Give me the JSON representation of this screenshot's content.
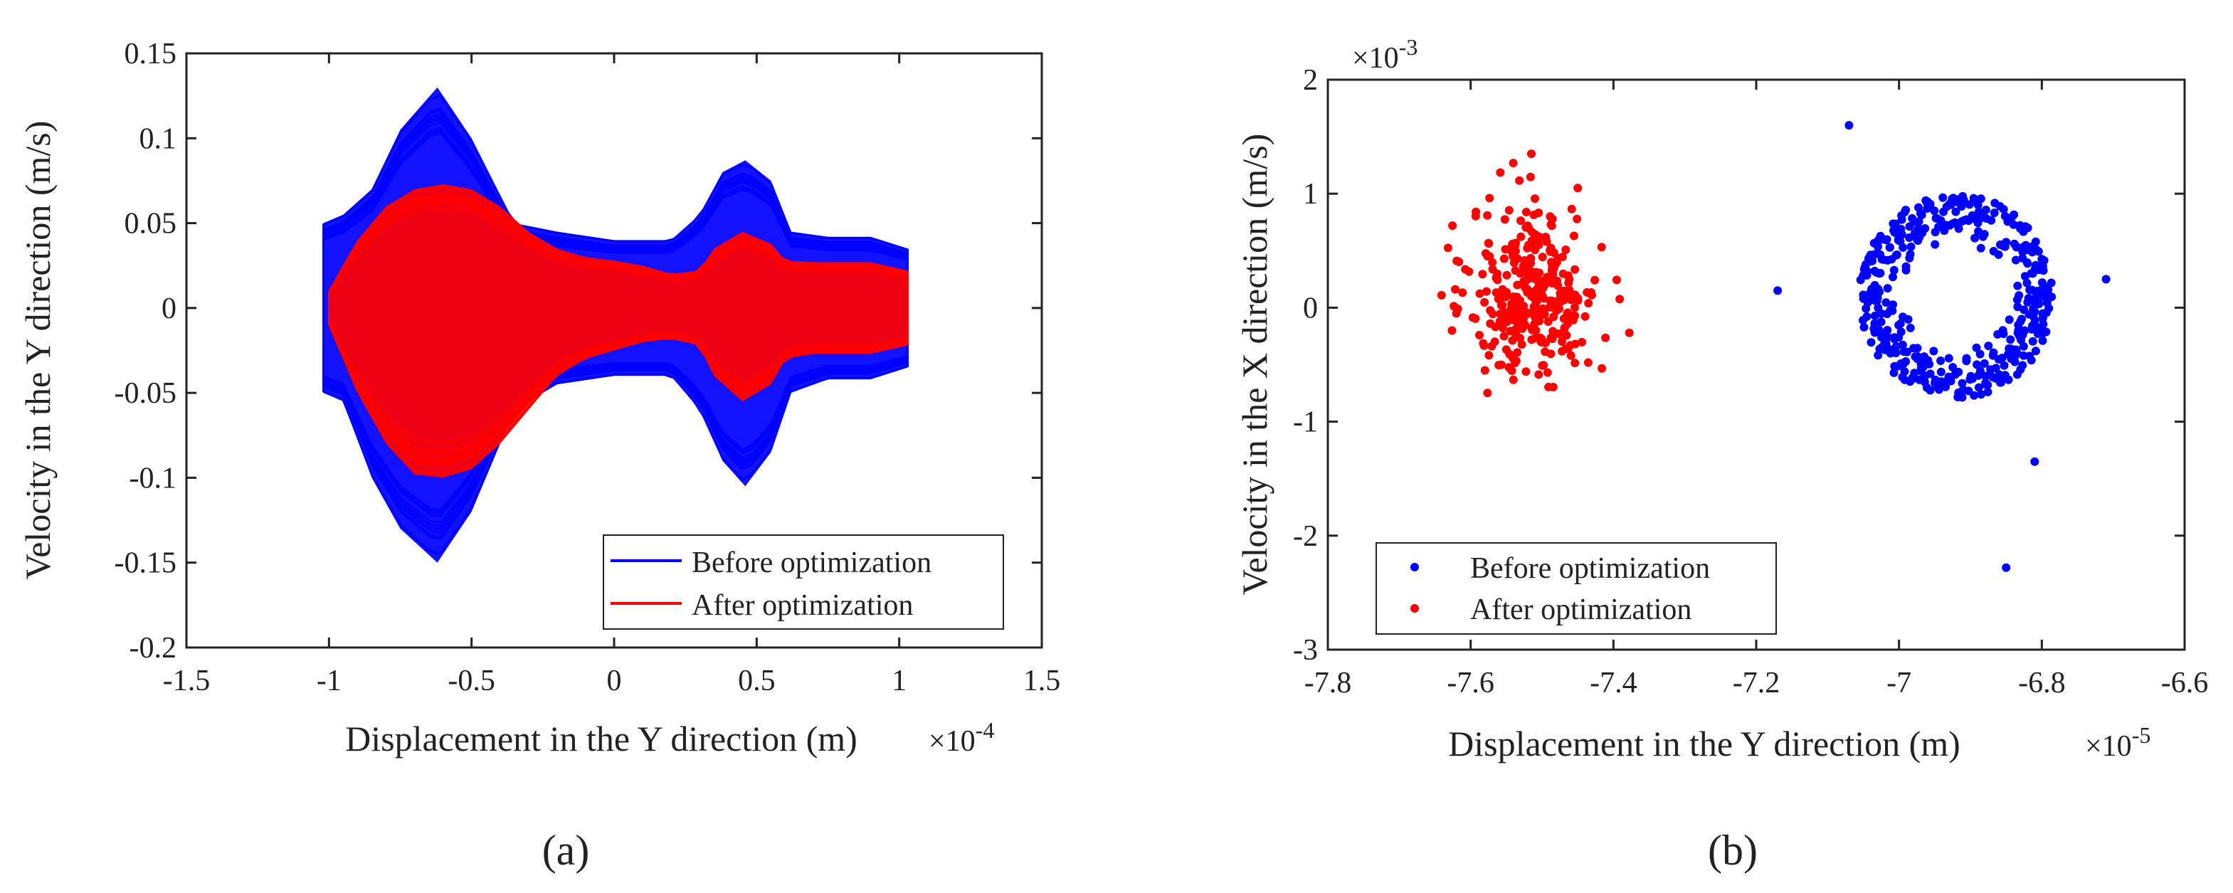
{
  "figure": {
    "panel_a_caption": "(a)",
    "panel_b_caption": "(b)"
  },
  "chart_data": [
    {
      "type": "line",
      "panel": "a",
      "xlabel": "Displacement in the Y direction (m)",
      "ylabel": "Velocity in the Y direction (m/s)",
      "x_multiplier": "×10",
      "x_exponent": "-4",
      "xlim": [
        -1.5,
        1.5
      ],
      "ylim": [
        -0.2,
        0.15
      ],
      "xticks": [
        -1.5,
        -1,
        -0.5,
        0,
        0.5,
        1,
        1.5
      ],
      "yticks": [
        -0.2,
        -0.15,
        -0.1,
        -0.05,
        0,
        0.05,
        0.1,
        0.15
      ],
      "xtick_labels": [
        "-1.5",
        "-1",
        "-0.5",
        "0",
        "0.5",
        "1",
        "1.5"
      ],
      "ytick_labels": [
        "-0.2",
        "-0.15",
        "-0.1",
        "-0.05",
        "0",
        "0.05",
        "0.1",
        "0.15"
      ],
      "legend_position": "bottom-right",
      "grid": false,
      "series": [
        {
          "name": "Before optimization",
          "color": "#0000ff",
          "envelope": {
            "x": [
              -1.02,
              -0.95,
              -0.85,
              -0.75,
              -0.62,
              -0.5,
              -0.35,
              -0.2,
              0,
              0.2,
              0.3,
              0.38,
              0.46,
              0.55,
              0.62,
              0.75,
              0.9,
              1.03
            ],
            "upper": [
              0.05,
              0.055,
              0.07,
              0.105,
              0.13,
              0.1,
              0.05,
              0.045,
              0.04,
              0.04,
              0.055,
              0.08,
              0.087,
              0.075,
              0.045,
              0.042,
              0.042,
              0.035
            ],
            "lower": [
              -0.05,
              -0.055,
              -0.1,
              -0.13,
              -0.15,
              -0.12,
              -0.06,
              -0.045,
              -0.04,
              -0.04,
              -0.06,
              -0.09,
              -0.105,
              -0.085,
              -0.05,
              -0.042,
              -0.042,
              -0.035
            ]
          }
        },
        {
          "name": "After optimization",
          "color": "#ff0000",
          "envelope": {
            "x": [
              -1.0,
              -0.9,
              -0.8,
              -0.7,
              -0.6,
              -0.5,
              -0.4,
              -0.3,
              -0.2,
              -0.1,
              0,
              0.1,
              0.2,
              0.3,
              0.35,
              0.45,
              0.55,
              0.6,
              0.7,
              0.8,
              0.9,
              1.03
            ],
            "upper": [
              0.01,
              0.04,
              0.06,
              0.07,
              0.073,
              0.07,
              0.06,
              0.045,
              0.035,
              0.03,
              0.028,
              0.025,
              0.02,
              0.022,
              0.035,
              0.045,
              0.038,
              0.028,
              0.027,
              0.027,
              0.027,
              0.022
            ],
            "lower": [
              -0.01,
              -0.05,
              -0.08,
              -0.098,
              -0.1,
              -0.095,
              -0.08,
              -0.06,
              -0.04,
              -0.03,
              -0.025,
              -0.02,
              -0.018,
              -0.022,
              -0.04,
              -0.055,
              -0.045,
              -0.03,
              -0.027,
              -0.027,
              -0.027,
              -0.022
            ]
          }
        }
      ]
    },
    {
      "type": "scatter",
      "panel": "b",
      "xlabel": "Displacement in the Y direction (m)",
      "ylabel": "Velocity in the X direction (m/s)",
      "x_multiplier": "×10",
      "x_exponent": "-5",
      "y_multiplier": "×10",
      "y_exponent": "-3",
      "xlim": [
        -7.8,
        -6.6
      ],
      "ylim": [
        -3,
        2
      ],
      "xticks": [
        -7.8,
        -7.6,
        -7.4,
        -7.2,
        -7,
        -6.8,
        -6.6
      ],
      "yticks": [
        -3,
        -2,
        -1,
        0,
        1,
        2
      ],
      "xtick_labels": [
        "-7.8",
        "-7.6",
        "-7.4",
        "-7.2",
        "-7",
        "-6.8",
        "-6.6"
      ],
      "ytick_labels": [
        "-3",
        "-2",
        "-1",
        "0",
        "1",
        "2"
      ],
      "legend_position": "bottom-left",
      "grid": false,
      "series": [
        {
          "name": "Before optimization",
          "color": "#0000ff",
          "cluster": {
            "shape": "ring",
            "center": [
              -6.92,
              0.1
            ],
            "radius": [
              0.13,
              0.85
            ],
            "count": 420
          },
          "outliers": [
            [
              -6.85,
              -2.28
            ],
            [
              -7.17,
              0.15
            ],
            [
              -6.81,
              -1.35
            ],
            [
              -7.07,
              1.6
            ],
            [
              -6.71,
              0.25
            ]
          ]
        },
        {
          "name": "After optimization",
          "color": "#ff0000",
          "cluster": {
            "shape": "ellipse",
            "center": [
              -7.51,
              0.12
            ],
            "spread": [
              0.045,
              0.38
            ],
            "count": 330
          },
          "outliers": [
            [
              -7.515,
              1.35
            ],
            [
              -7.62,
              -0.05
            ],
            [
              -7.45,
              1.05
            ]
          ]
        }
      ]
    }
  ]
}
